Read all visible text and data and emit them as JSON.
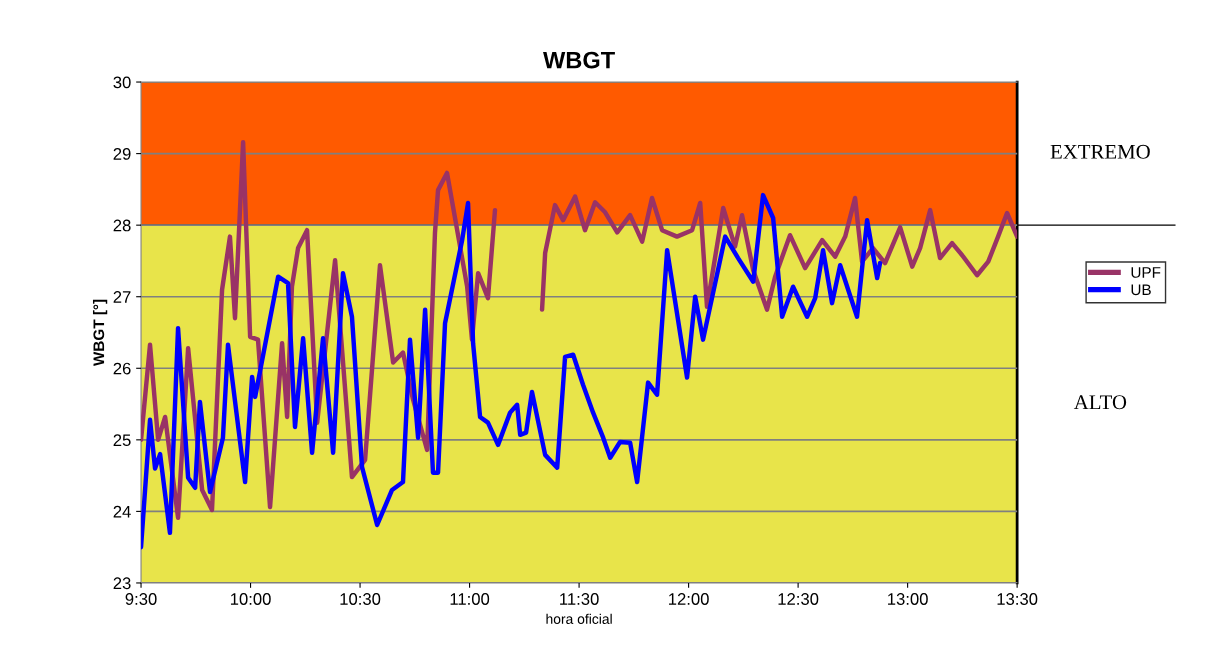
{
  "chart_data": {
    "type": "line",
    "title": "WBGT",
    "xlabel": "hora oficial",
    "ylabel": "WBGT [°]",
    "xlim": [
      9.5,
      13.5
    ],
    "ylim": [
      23,
      30
    ],
    "xticks": [
      {
        "value": 9.5,
        "label": "9:30"
      },
      {
        "value": 10.0,
        "label": "10:00"
      },
      {
        "value": 10.5,
        "label": "10:30"
      },
      {
        "value": 11.0,
        "label": "11:00"
      },
      {
        "value": 11.5,
        "label": "11:30"
      },
      {
        "value": 12.0,
        "label": "12:00"
      },
      {
        "value": 12.5,
        "label": "12:30"
      },
      {
        "value": 13.0,
        "label": "13:00"
      },
      {
        "value": 13.5,
        "label": "13:30"
      }
    ],
    "yticks": [
      23,
      24,
      25,
      26,
      27,
      28,
      29,
      30
    ],
    "grid": "y",
    "legend": "right",
    "marker": "none",
    "line_style": "solid",
    "bands": [
      {
        "axis": "y",
        "from": 28,
        "to": 30,
        "label": "EXTREMO",
        "color": "#ff5a00"
      },
      {
        "axis": "y",
        "from": 23,
        "to": 28,
        "label": "ALTO",
        "color": "#e8e44a"
      }
    ],
    "ref_lines": [
      {
        "axis": "y",
        "value": 28,
        "color": "#000000",
        "line_style": "solid"
      }
    ],
    "series": [
      {
        "name": "UPF",
        "color": "#993366",
        "x": [
          9.5,
          9.541,
          9.578,
          9.61,
          9.669,
          9.715,
          9.779,
          9.824,
          9.87,
          9.906,
          9.929,
          9.966,
          9.998,
          10.034,
          10.089,
          10.144,
          10.167,
          10.189,
          10.217,
          10.258,
          10.304,
          10.386,
          10.463,
          10.523,
          10.591,
          10.651,
          10.696,
          10.742,
          10.806,
          10.842,
          10.856,
          10.897,
          10.925,
          10.989,
          11.011,
          11.039,
          11.084,
          11.116,
          11.2,
          11.331,
          11.345,
          11.39,
          11.427,
          11.482,
          11.527,
          11.573,
          11.619,
          11.674,
          11.733,
          11.788,
          11.833,
          11.879,
          11.947,
          12.016,
          12.053,
          12.084,
          12.158,
          12.212,
          12.244,
          12.295,
          12.358,
          12.395,
          12.463,
          12.532,
          12.61,
          12.669,
          12.715,
          12.76,
          12.792,
          12.842,
          12.897,
          12.966,
          13.021,
          13.057,
          13.103,
          13.148,
          13.203,
          13.249,
          13.317,
          13.368,
          13.413,
          13.454,
          13.5
        ],
        "values": [
          25.0,
          26.33,
          25.0,
          25.32,
          23.91,
          26.28,
          24.3,
          24.02,
          27.1,
          27.84,
          26.7,
          29.16,
          26.44,
          26.4,
          24.06,
          26.35,
          25.32,
          27.14,
          27.68,
          27.93,
          25.24,
          27.51,
          24.48,
          24.72,
          27.44,
          26.08,
          26.22,
          25.56,
          24.86,
          27.89,
          28.49,
          28.73,
          28.25,
          27.14,
          26.4,
          27.33,
          26.98,
          28.21,
          null,
          26.82,
          27.61,
          28.28,
          28.07,
          28.4,
          27.93,
          28.32,
          28.18,
          27.9,
          28.14,
          27.77,
          28.38,
          27.93,
          27.84,
          27.93,
          28.31,
          26.86,
          28.24,
          27.7,
          28.14,
          27.37,
          26.82,
          27.28,
          27.86,
          27.4,
          27.79,
          27.56,
          27.84,
          28.38,
          27.49,
          27.68,
          27.47,
          27.97,
          27.42,
          27.68,
          28.21,
          27.54,
          27.75,
          27.58,
          27.3,
          27.49,
          27.84,
          28.17,
          27.84
        ]
      },
      {
        "name": "UB",
        "color": "#0000ff",
        "x": [
          9.5,
          9.541,
          9.564,
          9.587,
          9.632,
          9.669,
          9.715,
          9.747,
          9.769,
          9.815,
          9.874,
          9.897,
          9.975,
          10.007,
          10.021,
          10.126,
          10.171,
          10.203,
          10.24,
          10.281,
          10.331,
          10.377,
          10.422,
          10.463,
          10.509,
          10.578,
          10.646,
          10.696,
          10.728,
          10.765,
          10.797,
          10.833,
          10.856,
          10.888,
          10.966,
          10.993,
          11.016,
          11.048,
          11.084,
          11.13,
          11.185,
          11.217,
          11.231,
          11.258,
          11.285,
          11.345,
          11.4,
          11.436,
          11.473,
          11.518,
          11.564,
          11.61,
          11.642,
          11.687,
          11.733,
          11.765,
          11.815,
          11.856,
          11.902,
          11.993,
          12.03,
          12.066,
          12.167,
          12.226,
          12.295,
          12.34,
          12.386,
          12.427,
          12.477,
          12.541,
          12.578,
          12.614,
          12.655,
          12.692,
          12.769,
          12.815,
          12.861,
          12.874
        ],
        "values": [
          23.5,
          25.28,
          24.6,
          24.8,
          23.7,
          26.56,
          24.47,
          24.33,
          25.53,
          24.27,
          25.03,
          26.33,
          24.41,
          25.88,
          25.6,
          27.28,
          27.19,
          25.18,
          26.42,
          24.82,
          26.42,
          24.82,
          27.33,
          26.72,
          24.62,
          23.81,
          24.3,
          24.41,
          26.4,
          25.03,
          26.82,
          24.54,
          24.54,
          26.63,
          27.79,
          28.31,
          26.35,
          25.32,
          25.24,
          24.93,
          25.38,
          25.49,
          25.07,
          25.1,
          25.67,
          24.79,
          24.61,
          26.16,
          26.19,
          25.77,
          25.38,
          25.03,
          24.75,
          24.97,
          24.96,
          24.41,
          25.8,
          25.63,
          27.65,
          25.87,
          27.0,
          26.4,
          27.84,
          27.54,
          27.21,
          28.42,
          28.1,
          26.72,
          27.14,
          26.72,
          26.98,
          27.65,
          26.91,
          27.44,
          26.72,
          28.07,
          27.26,
          27.47
        ]
      }
    ]
  }
}
